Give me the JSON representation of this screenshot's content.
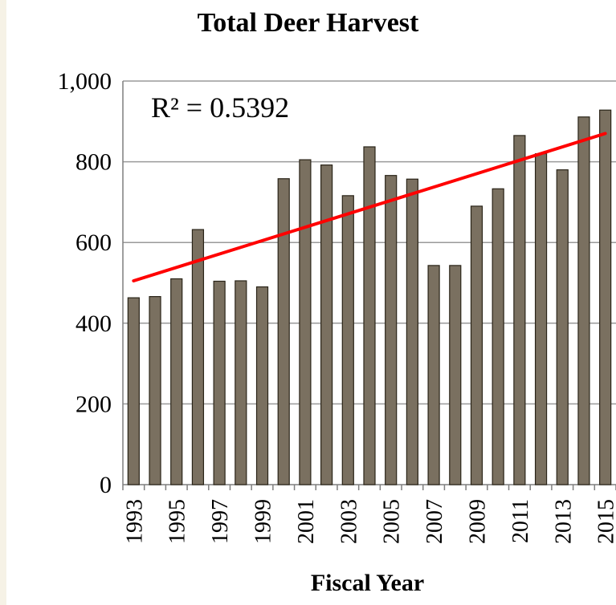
{
  "chart_data": {
    "type": "bar",
    "title": "Total Deer Harvest",
    "xlabel": "Fiscal Year",
    "ylabel": "",
    "ylim": [
      0,
      1000
    ],
    "yticks": [
      "0",
      "200",
      "400",
      "600",
      "800",
      "1,000"
    ],
    "categories": [
      "1993",
      "1994",
      "1995",
      "1996",
      "1997",
      "1998",
      "1999",
      "2000",
      "2001",
      "2002",
      "2003",
      "2004",
      "2005",
      "2006",
      "2007",
      "2008",
      "2009",
      "2010",
      "2011",
      "2012",
      "2013",
      "2014",
      "2015"
    ],
    "xtick_labels": [
      "1993",
      "1995",
      "1997",
      "1999",
      "2001",
      "2003",
      "2005",
      "2007",
      "2009",
      "2011",
      "2013",
      "2015"
    ],
    "values": [
      463,
      466,
      510,
      632,
      504,
      505,
      490,
      758,
      805,
      792,
      716,
      837,
      766,
      757,
      543,
      543,
      690,
      733,
      865,
      820,
      780,
      911,
      928
    ],
    "trendline": {
      "type": "linear",
      "start_value": 505,
      "end_value": 870,
      "r_squared_label": "R² = 0.5392"
    },
    "grid": true,
    "legend": "none",
    "colors": {
      "bar_fill": "#7a7060",
      "bar_stroke": "#2a2418",
      "trendline": "#ff0000",
      "grid": "#9a9a9a"
    }
  }
}
